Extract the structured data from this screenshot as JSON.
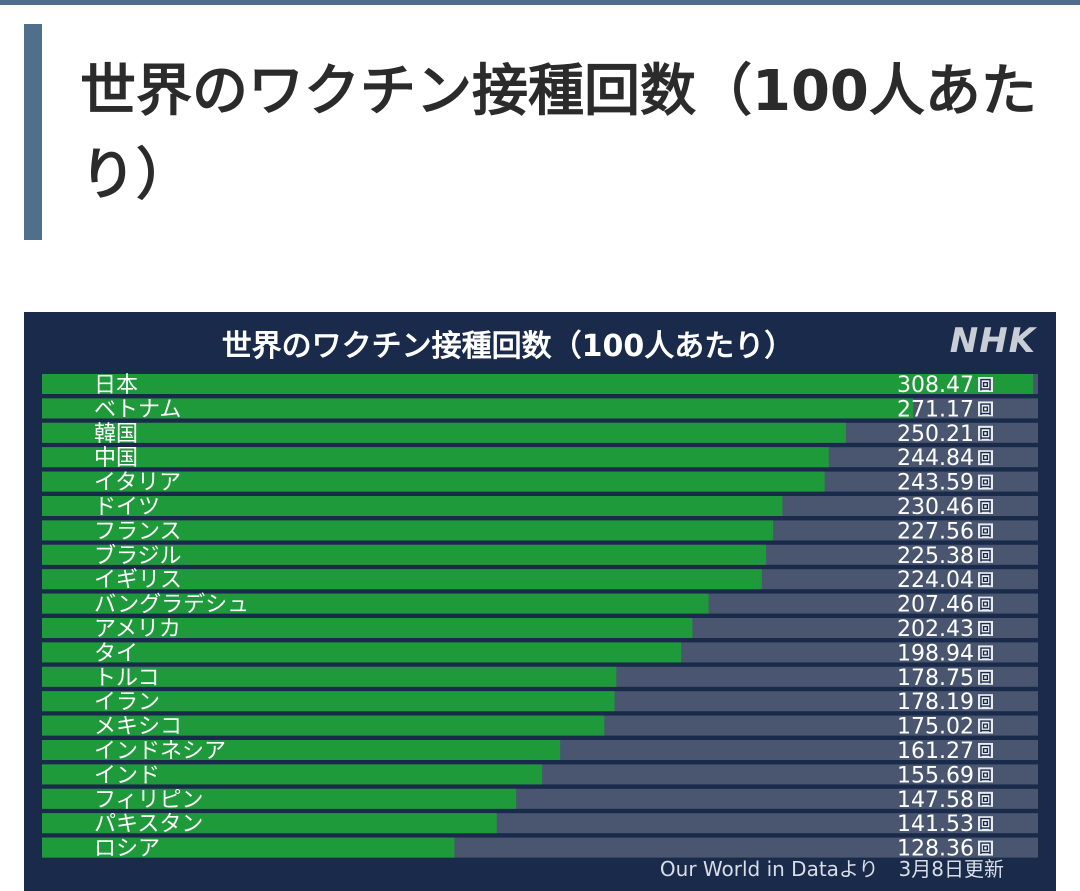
{
  "page": {
    "heading": "世界のワクチン接種回数（100人あたり）"
  },
  "colors": {
    "accent": "#4f6f8a",
    "panel_bg": "#1a2a4a",
    "bar_fill": "#1f9a3a",
    "bar_track": "#4a5670"
  },
  "chart_data": {
    "type": "bar",
    "orientation": "horizontal",
    "title": "世界のワクチン接種回数（100人あたり）",
    "brand": "NHK",
    "unit": "回",
    "source": "Our World in Dataより　3月8日更新",
    "xlim": [
      0,
      310
    ],
    "grid": false,
    "legend": "none",
    "categories": [
      "日本",
      "ベトナム",
      "韓国",
      "中国",
      "イタリア",
      "ドイツ",
      "フランス",
      "ブラジル",
      "イギリス",
      "バングラデシュ",
      "アメリカ",
      "タイ",
      "トルコ",
      "イラン",
      "メキシコ",
      "インドネシア",
      "インド",
      "フィリピン",
      "パキスタン",
      "ロシア"
    ],
    "values": [
      308.47,
      271.17,
      250.21,
      244.84,
      243.59,
      230.46,
      227.56,
      225.38,
      224.04,
      207.46,
      202.43,
      198.94,
      178.75,
      178.19,
      175.02,
      161.27,
      155.69,
      147.58,
      141.53,
      128.36
    ],
    "value_labels": [
      "308.47",
      "271.17",
      "250.21",
      "244.84",
      "243.59",
      "230.46",
      "227.56",
      "225.38",
      "224.04",
      "207.46",
      "202.43",
      "198.94",
      "178.75",
      "178.19",
      "175.02",
      "161.27",
      "155.69",
      "147.58",
      "141.53",
      "128.36"
    ]
  }
}
